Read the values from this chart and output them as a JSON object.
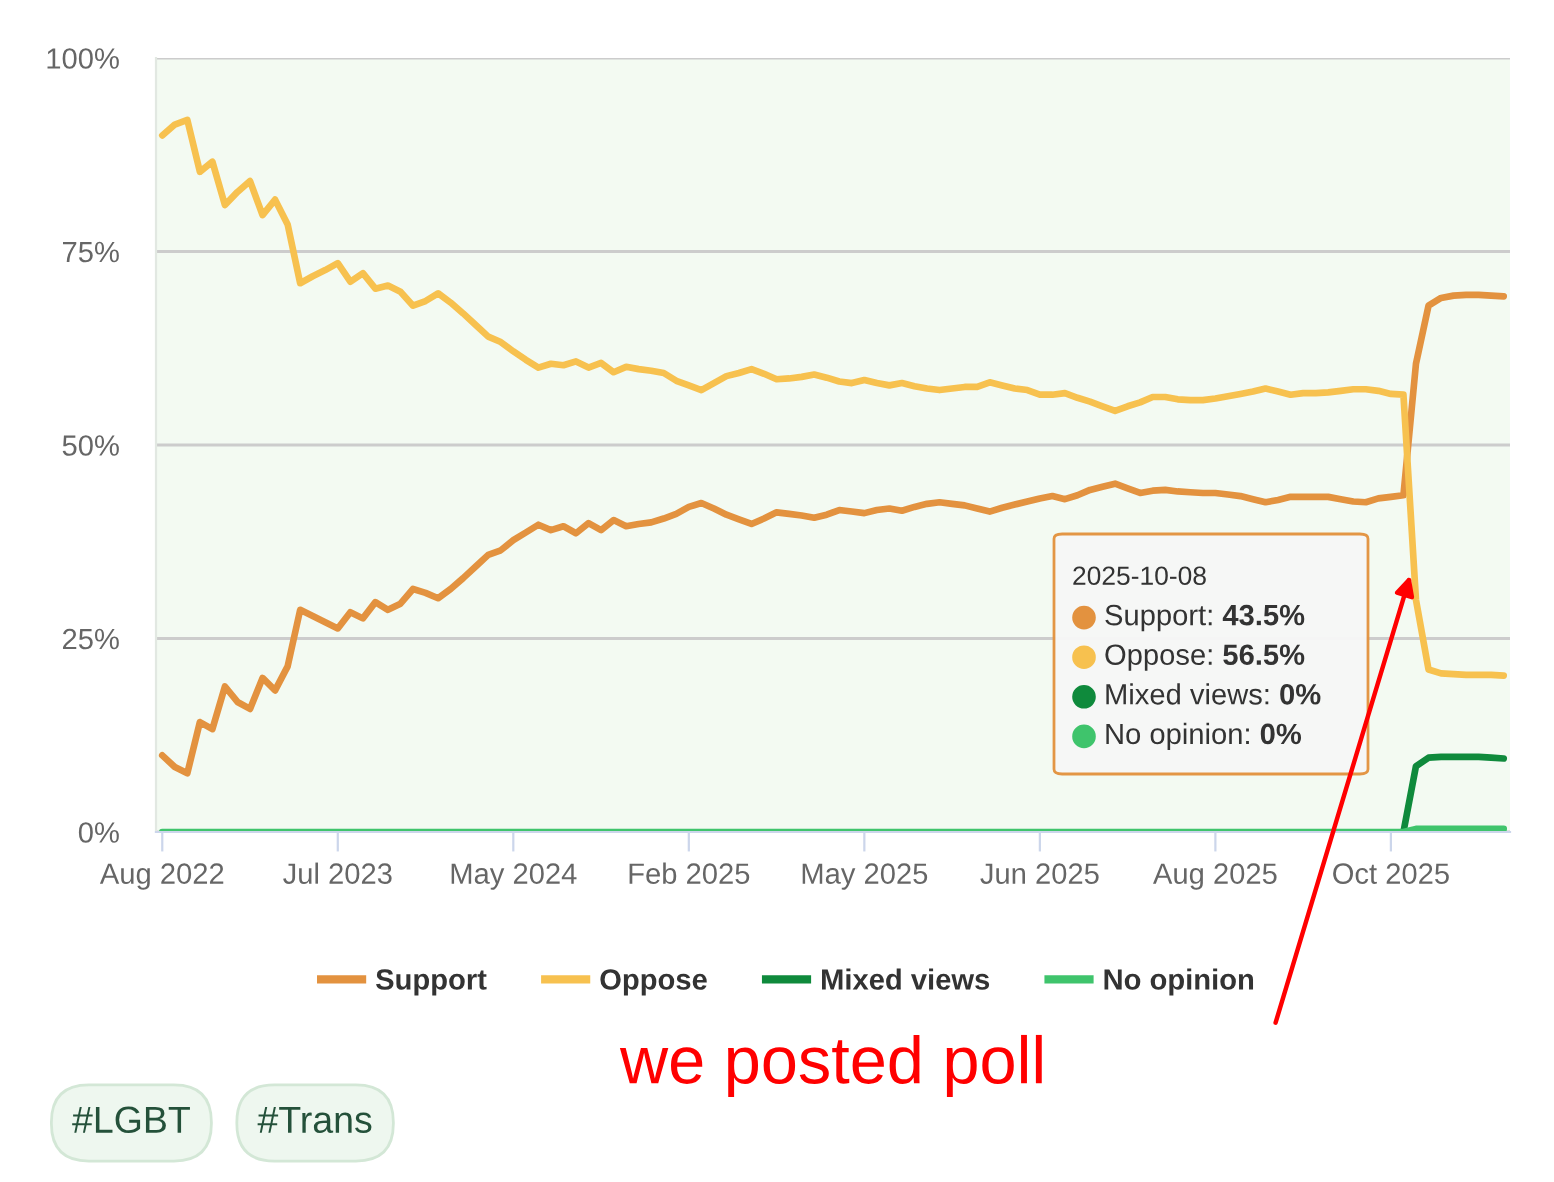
{
  "chart_data": {
    "type": "line",
    "categories": [
      "Aug 2022",
      null,
      null,
      null,
      null,
      null,
      null,
      null,
      null,
      null,
      null,
      null,
      null,
      null,
      "Jul 2023",
      null,
      null,
      null,
      null,
      null,
      null,
      null,
      null,
      null,
      null,
      null,
      null,
      null,
      "May 2024",
      null,
      null,
      null,
      null,
      null,
      null,
      null,
      null,
      null,
      null,
      null,
      null,
      null,
      "Feb 2025",
      null,
      null,
      null,
      null,
      null,
      null,
      null,
      null,
      null,
      null,
      null,
      null,
      null,
      "May 2025",
      null,
      null,
      null,
      null,
      null,
      null,
      null,
      null,
      null,
      null,
      null,
      null,
      null,
      "Jun 2025",
      null,
      null,
      null,
      null,
      null,
      null,
      null,
      null,
      null,
      null,
      null,
      null,
      null,
      "Aug 2025",
      null,
      null,
      null,
      null,
      null,
      null,
      null,
      null,
      null,
      null,
      null,
      null,
      null,
      "Oct 2025",
      null,
      null,
      null,
      null,
      null,
      null,
      null,
      null,
      null
    ],
    "series": [
      {
        "name": "Support",
        "color": "#e3923f",
        "values": [
          9.9,
          8.4,
          7.6,
          14.2,
          13.3,
          18.8,
          16.8,
          15.9,
          19.9,
          18.3,
          21.4,
          28.7,
          27.9,
          27.1,
          26.3,
          28.4,
          27.6,
          29.7,
          28.7,
          29.5,
          31.4,
          30.9,
          30.2,
          31.4,
          32.8,
          34.3,
          35.8,
          36.4,
          37.7,
          38.7,
          39.7,
          39.0,
          39.5,
          38.6,
          39.9,
          39.0,
          40.3,
          39.5,
          39.8,
          40.0,
          40.5,
          41.1,
          42.0,
          42.5,
          41.8,
          41.0,
          40.4,
          39.8,
          40.5,
          41.3,
          41.1,
          40.9,
          40.6,
          41.0,
          41.6,
          41.4,
          41.2,
          41.6,
          41.8,
          41.5,
          42.0,
          42.4,
          42.6,
          42.4,
          42.2,
          41.8,
          41.4,
          41.9,
          42.3,
          42.7,
          43.1,
          43.4,
          43.0,
          43.5,
          44.2,
          44.6,
          45.0,
          44.4,
          43.8,
          44.1,
          44.2,
          44.0,
          43.9,
          43.8,
          43.8,
          43.6,
          43.4,
          43.0,
          42.6,
          42.9,
          43.3,
          43.3,
          43.3,
          43.3,
          43.0,
          42.7,
          42.6,
          43.1,
          43.3,
          43.5,
          60.5,
          68.0,
          69.0,
          69.3,
          69.4,
          69.4,
          69.3,
          69.2
        ]
      },
      {
        "name": "Oppose",
        "color": "#f7c14f",
        "values": [
          90.0,
          91.4,
          92.0,
          85.3,
          86.6,
          81.0,
          82.7,
          84.1,
          79.7,
          81.7,
          78.5,
          70.9,
          71.8,
          72.6,
          73.5,
          71.1,
          72.2,
          70.2,
          70.6,
          69.8,
          68.0,
          68.6,
          69.6,
          68.4,
          67.0,
          65.5,
          64.0,
          63.3,
          62.1,
          61.0,
          60.0,
          60.5,
          60.3,
          60.8,
          60.0,
          60.6,
          59.4,
          60.1,
          59.8,
          59.6,
          59.3,
          58.3,
          57.7,
          57.1,
          58.0,
          58.9,
          59.3,
          59.8,
          59.2,
          58.5,
          58.6,
          58.8,
          59.1,
          58.7,
          58.2,
          58.0,
          58.4,
          58.0,
          57.7,
          58.0,
          57.6,
          57.3,
          57.1,
          57.3,
          57.5,
          57.5,
          58.1,
          57.7,
          57.3,
          57.1,
          56.5,
          56.5,
          56.7,
          56.1,
          55.6,
          55.0,
          54.4,
          55.0,
          55.5,
          56.2,
          56.2,
          55.9,
          55.8,
          55.8,
          56.0,
          56.3,
          56.6,
          56.9,
          57.3,
          56.9,
          56.5,
          56.7,
          56.7,
          56.8,
          57.0,
          57.2,
          57.2,
          57.0,
          56.6,
          56.5,
          30.0,
          21.0,
          20.5,
          20.4,
          20.3,
          20.3,
          20.3,
          20.2
        ]
      },
      {
        "name": "Mixed views",
        "color": "#0f8a3c",
        "values": [
          null,
          null,
          null,
          null,
          null,
          null,
          null,
          null,
          null,
          null,
          null,
          null,
          null,
          null,
          null,
          null,
          null,
          null,
          null,
          null,
          null,
          null,
          null,
          null,
          null,
          null,
          null,
          null,
          null,
          null,
          null,
          null,
          null,
          null,
          null,
          null,
          null,
          null,
          null,
          null,
          null,
          null,
          null,
          null,
          null,
          null,
          null,
          null,
          null,
          null,
          null,
          null,
          null,
          null,
          null,
          null,
          null,
          null,
          null,
          null,
          null,
          null,
          null,
          null,
          null,
          null,
          null,
          null,
          null,
          null,
          null,
          null,
          null,
          null,
          null,
          null,
          null,
          null,
          null,
          null,
          null,
          null,
          null,
          null,
          null,
          null,
          null,
          null,
          null,
          null,
          null,
          null,
          null,
          null,
          null,
          null,
          null,
          null,
          null,
          0,
          8.5,
          9.6,
          9.7,
          9.7,
          9.7,
          9.7,
          9.6,
          9.5
        ]
      },
      {
        "name": "No opinion",
        "color": "#3fc46c",
        "values": [
          0,
          0,
          0,
          0,
          0,
          0,
          0,
          0,
          0,
          0,
          0,
          0,
          0,
          0,
          0,
          0,
          0,
          0,
          0,
          0,
          0,
          0,
          0,
          0,
          0,
          0,
          0,
          0,
          0,
          0,
          0,
          0,
          0,
          0,
          0,
          0,
          0,
          0,
          0,
          0,
          0,
          0,
          0,
          0,
          0,
          0,
          0,
          0,
          0,
          0,
          0,
          0,
          0,
          0,
          0,
          0,
          0,
          0,
          0,
          0,
          0,
          0,
          0,
          0,
          0,
          0,
          0,
          0,
          0,
          0,
          0,
          0,
          0,
          0,
          0,
          0,
          0,
          0,
          0,
          0,
          0,
          0,
          0,
          0,
          0,
          0,
          0,
          0,
          0,
          0,
          0,
          0,
          0,
          0,
          0,
          0,
          0,
          0,
          0,
          0,
          0.4,
          0.4,
          0.4,
          0.4,
          0.4,
          0.4,
          0.4,
          0.4
        ]
      }
    ],
    "ylim": [
      0,
      100
    ],
    "yticks": [
      {
        "value": 0,
        "label": "0%"
      },
      {
        "value": 25,
        "label": "25%"
      },
      {
        "value": 50,
        "label": "50%"
      },
      {
        "value": 75,
        "label": "75%"
      },
      {
        "value": 100,
        "label": "100%"
      }
    ],
    "grid": "y",
    "legend": "bottom",
    "annotations": [
      "2025-10-08\nSupport: 43.5%\nOppose: 56.5%\nMixed views: 0%\nNo opinion: 0%",
      "we posted poll",
      "#LGBT",
      "#Trans"
    ]
  }
}
